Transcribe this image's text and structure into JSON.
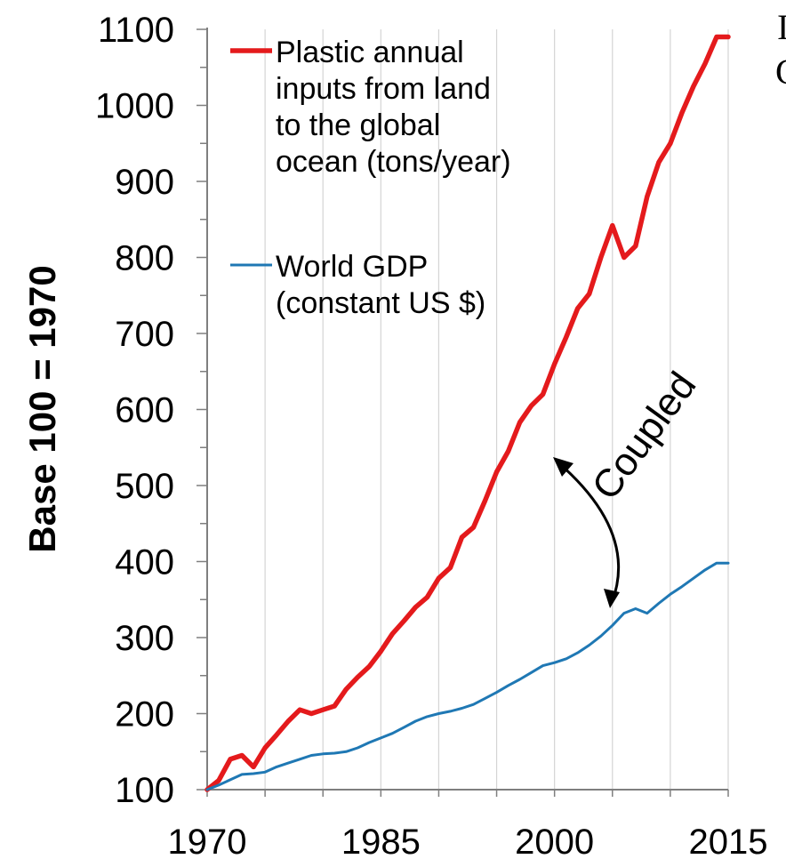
{
  "chart_data": {
    "type": "line",
    "ylabel": "Base 100 = 1970",
    "xlabel": "",
    "xlim": [
      1970,
      2015
    ],
    "ylim": [
      100,
      1100
    ],
    "x_ticks": [
      1970,
      1985,
      2000,
      2015
    ],
    "y_ticks": [
      100,
      200,
      300,
      400,
      500,
      600,
      700,
      800,
      900,
      1000,
      1100
    ],
    "grid": "vertical",
    "legend_position": "top-left",
    "series": [
      {
        "name": "Plastic annual inputs from land to the global ocean (tons/year)",
        "legend_lines": [
          "Plastic annual",
          "inputs from land",
          "to the global",
          "ocean (tons/year)"
        ],
        "color": "#e41a1c",
        "x": [
          1970,
          1971,
          1972,
          1973,
          1974,
          1975,
          1976,
          1977,
          1978,
          1979,
          1980,
          1981,
          1982,
          1983,
          1984,
          1985,
          1986,
          1987,
          1988,
          1989,
          1990,
          1991,
          1992,
          1993,
          1994,
          1995,
          1996,
          1997,
          1998,
          1999,
          2000,
          2001,
          2002,
          2003,
          2004,
          2005,
          2006,
          2007,
          2008,
          2009,
          2010,
          2011,
          2012,
          2013,
          2014,
          2015
        ],
        "values": [
          100,
          112,
          140,
          145,
          130,
          155,
          172,
          190,
          205,
          200,
          205,
          210,
          232,
          248,
          262,
          282,
          305,
          322,
          340,
          353,
          378,
          392,
          432,
          445,
          480,
          518,
          545,
          583,
          605,
          620,
          660,
          695,
          733,
          752,
          800,
          842,
          800,
          815,
          880,
          925,
          950,
          990,
          1025,
          1055,
          1090,
          1090
        ]
      },
      {
        "name": "World GDP (constant US $)",
        "legend_lines": [
          "World GDP",
          "(constant US $)"
        ],
        "color": "#1f78b4",
        "x": [
          1970,
          1971,
          1972,
          1973,
          1974,
          1975,
          1976,
          1977,
          1978,
          1979,
          1980,
          1981,
          1982,
          1983,
          1984,
          1985,
          1986,
          1987,
          1988,
          1989,
          1990,
          1991,
          1992,
          1993,
          1994,
          1995,
          1996,
          1997,
          1998,
          1999,
          2000,
          2001,
          2002,
          2003,
          2004,
          2005,
          2006,
          2007,
          2008,
          2009,
          2010,
          2011,
          2012,
          2013,
          2014,
          2015
        ],
        "values": [
          100,
          106,
          113,
          120,
          121,
          123,
          130,
          135,
          140,
          145,
          147,
          148,
          150,
          155,
          162,
          168,
          174,
          182,
          190,
          196,
          200,
          203,
          207,
          212,
          220,
          228,
          237,
          245,
          254,
          263,
          267,
          272,
          280,
          290,
          302,
          316,
          332,
          338,
          332,
          345,
          357,
          367,
          378,
          389,
          398,
          398
        ]
      }
    ],
    "annotations": [
      {
        "text": "Coupled"
      }
    ]
  },
  "cutoff_text": [
    "I",
    "C"
  ]
}
